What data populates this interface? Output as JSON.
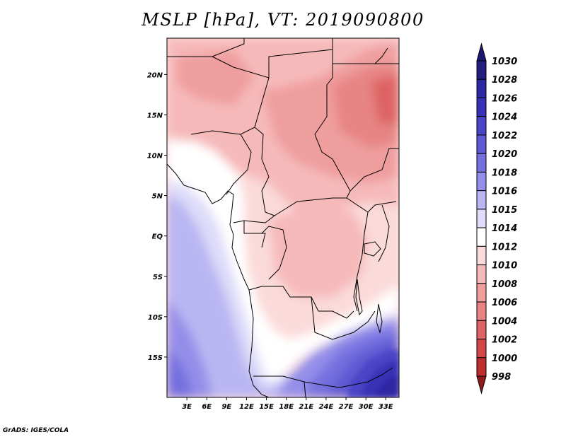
{
  "title": "MSLP [hPa], VT: 2019090800",
  "credit": "GrADS: IGES/COLA",
  "map": {
    "lon_range": [
      0,
      35
    ],
    "lat_range": [
      -20,
      24.5
    ],
    "lon_ticks": [
      {
        "value": 3,
        "label": "3E"
      },
      {
        "value": 6,
        "label": "6E"
      },
      {
        "value": 9,
        "label": "9E"
      },
      {
        "value": 12,
        "label": "12E"
      },
      {
        "value": 15,
        "label": "15E"
      },
      {
        "value": 18,
        "label": "18E"
      },
      {
        "value": 21,
        "label": "21E"
      },
      {
        "value": 24,
        "label": "24E"
      },
      {
        "value": 27,
        "label": "27E"
      },
      {
        "value": 30,
        "label": "30E"
      },
      {
        "value": 33,
        "label": "33E"
      }
    ],
    "lat_ticks": [
      {
        "value": 20,
        "label": "20N"
      },
      {
        "value": 15,
        "label": "15N"
      },
      {
        "value": 10,
        "label": "10N"
      },
      {
        "value": 5,
        "label": "5N"
      },
      {
        "value": 0,
        "label": "EQ"
      },
      {
        "value": -5,
        "label": "5S"
      },
      {
        "value": -10,
        "label": "10S"
      },
      {
        "value": -15,
        "label": "15S"
      }
    ]
  },
  "colorbar": {
    "levels": [
      {
        "label": "1030",
        "color": "#231f7e"
      },
      {
        "label": "1028",
        "color": "#2d27a3"
      },
      {
        "label": "1026",
        "color": "#3832b6"
      },
      {
        "label": "1024",
        "color": "#4a45c6"
      },
      {
        "label": "1022",
        "color": "#5f5ad3"
      },
      {
        "label": "1020",
        "color": "#7570df"
      },
      {
        "label": "1018",
        "color": "#948ee9"
      },
      {
        "label": "1016",
        "color": "#bab6f3"
      },
      {
        "label": "1015",
        "color": "#dedcf9"
      },
      {
        "label": "1014",
        "color": "#ffffff"
      },
      {
        "label": "1012",
        "color": "#fbdada"
      },
      {
        "label": "1010",
        "color": "#f6b9b9"
      },
      {
        "label": "1008",
        "color": "#ef9e9e"
      },
      {
        "label": "1006",
        "color": "#e78484"
      },
      {
        "label": "1004",
        "color": "#dd6464"
      },
      {
        "label": "1002",
        "color": "#d24848"
      },
      {
        "label": "1000",
        "color": "#bf2e2e"
      },
      {
        "label": "998",
        "color": "#a12020"
      }
    ],
    "top_color": "#1c1872",
    "bottom_color": "#8f1a1a"
  }
}
